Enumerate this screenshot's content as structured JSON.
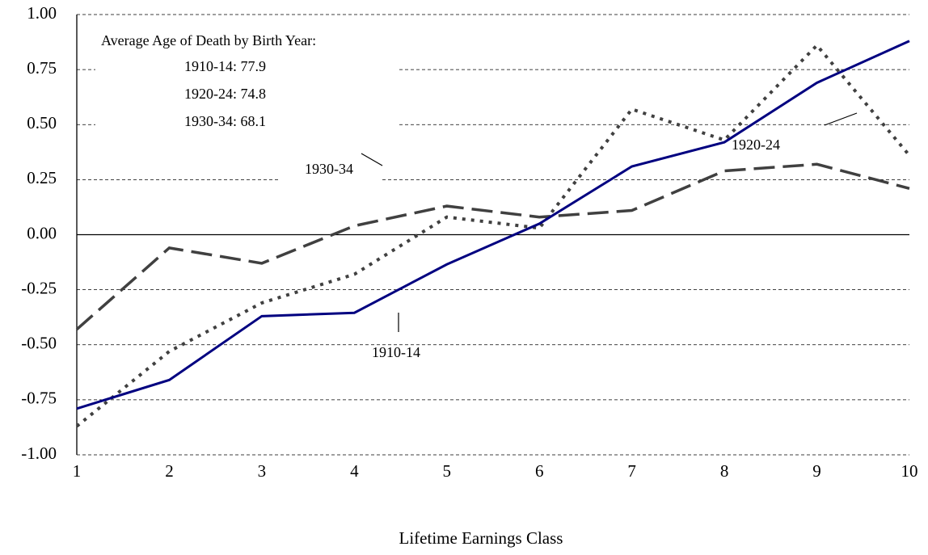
{
  "chart_data": {
    "type": "line",
    "x_label": "Lifetime Earnings Class",
    "x": [
      1,
      2,
      3,
      4,
      5,
      6,
      7,
      8,
      9,
      10
    ],
    "xlim": [
      1,
      10
    ],
    "xticks": [
      1,
      2,
      3,
      4,
      5,
      6,
      7,
      8,
      9,
      10
    ],
    "ylim": [
      -1,
      1
    ],
    "yticks": [
      {
        "value": -1,
        "label": "-1.00"
      },
      {
        "value": -0.75,
        "label": "-0.75"
      },
      {
        "value": -0.5,
        "label": "-0.50"
      },
      {
        "value": -0.25,
        "label": "-0.25"
      },
      {
        "value": 0,
        "label": "0.00"
      },
      {
        "value": 0.25,
        "label": "0.25"
      },
      {
        "value": 0.5,
        "label": "0.50"
      },
      {
        "value": 0.75,
        "label": "0.75"
      },
      {
        "value": 1,
        "label": "1.00"
      }
    ],
    "grid": true,
    "series": [
      {
        "name": "1910-14",
        "color": "#000080",
        "style": "solid",
        "values": [
          -0.79,
          -0.66,
          -0.37,
          -0.355,
          -0.135,
          0.05,
          0.31,
          0.42,
          0.69,
          0.88
        ]
      },
      {
        "name": "1920-24",
        "color": "#404040",
        "style": "dotted",
        "values": [
          -0.87,
          -0.53,
          -0.31,
          -0.18,
          0.08,
          0.03,
          0.57,
          0.43,
          0.86,
          0.36
        ]
      },
      {
        "name": "1930-34",
        "color": "#404040",
        "style": "dashed",
        "values": [
          -0.43,
          -0.06,
          -0.13,
          0.04,
          0.13,
          0.08,
          0.11,
          0.29,
          0.32,
          0.21
        ]
      }
    ],
    "annotations": [
      "Average Age of Death by Birth Year:",
      "1910-14: 77.9",
      "1920-24: 74.8",
      "1930-34: 68.1"
    ]
  }
}
